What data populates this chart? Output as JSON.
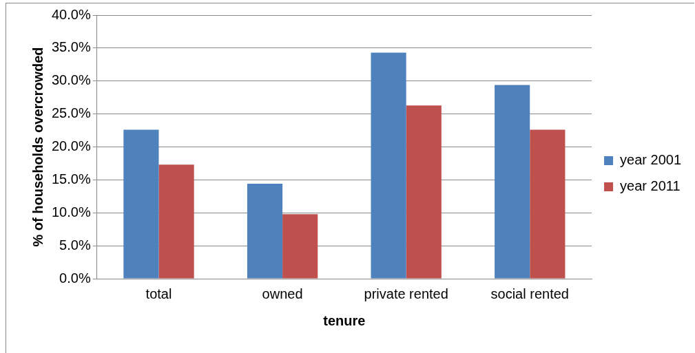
{
  "chart_data": {
    "type": "bar",
    "xlabel": "tenure",
    "ylabel": "% of households overcrowded",
    "categories": [
      "total",
      "owned",
      "private rented",
      "social rented"
    ],
    "series": [
      {
        "name": "year 2001",
        "color": "#4f81bd",
        "values": [
          22.6,
          14.4,
          34.3,
          29.4
        ]
      },
      {
        "name": "year 2011",
        "color": "#c0504d",
        "values": [
          17.3,
          9.8,
          26.3,
          22.6
        ]
      }
    ],
    "ylim": [
      0,
      40
    ],
    "yticks": [
      {
        "value": 0,
        "label": "0.0%"
      },
      {
        "value": 5,
        "label": "5.0%"
      },
      {
        "value": 10,
        "label": "10.0%"
      },
      {
        "value": 15,
        "label": "15.0%"
      },
      {
        "value": 20,
        "label": "20.0%"
      },
      {
        "value": 25,
        "label": "25.0%"
      },
      {
        "value": 30,
        "label": "30.0%"
      },
      {
        "value": 35,
        "label": "35.0%"
      },
      {
        "value": 40,
        "label": "40.0%"
      }
    ],
    "grid": "y",
    "legend": "right"
  }
}
